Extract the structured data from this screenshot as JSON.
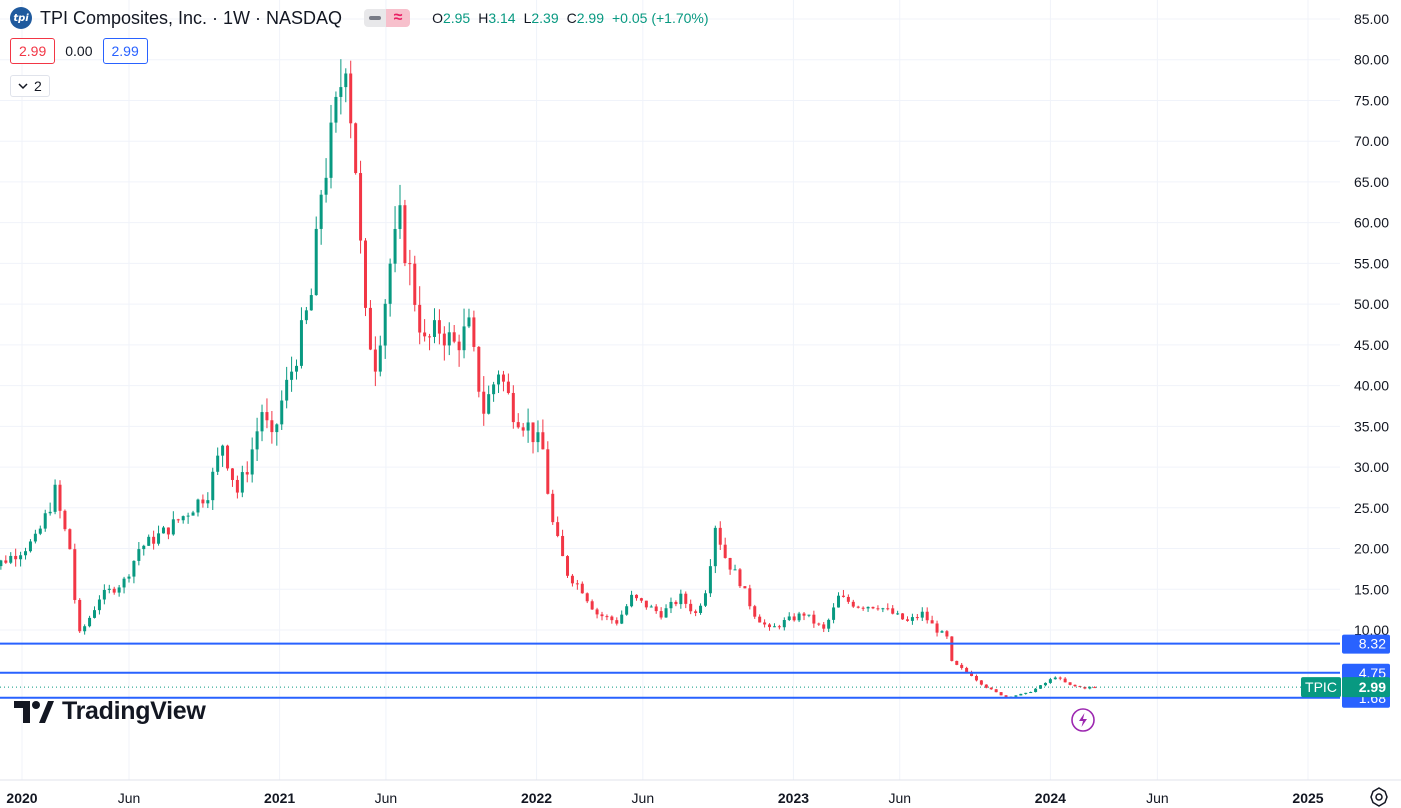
{
  "header": {
    "logo_text": "tpi",
    "title": "TPI Composites, Inc. · 1W · NASDAQ",
    "ohlc": [
      {
        "k": "O",
        "v": "2.95"
      },
      {
        "k": "H",
        "v": "3.14"
      },
      {
        "k": "L",
        "v": "2.39"
      },
      {
        "k": "C",
        "v": "2.99"
      }
    ],
    "change": "+0.05 (+1.70%)",
    "sell_price": "2.99",
    "spread": "0.00",
    "buy_price": "2.99",
    "indicators_count": "2",
    "collapse_icon": "chevron-down-icon"
  },
  "branding": {
    "name": "TradingView"
  },
  "colors": {
    "up": "#089981",
    "down": "#f23645",
    "hline": "#2962ff",
    "price_label_bg": "#089981",
    "hline_label_bg": "#2962ff",
    "grid": "#f0f3fa"
  },
  "chart_data": {
    "type": "candlestick",
    "symbol": "TPIC",
    "interval": "1W",
    "last_price": 2.99,
    "last_price_label": "2.99",
    "y_ticks": [
      "10.00",
      "15.00",
      "20.00",
      "25.00",
      "30.00",
      "35.00",
      "40.00",
      "45.00",
      "50.00",
      "55.00",
      "60.00",
      "65.00",
      "70.00",
      "75.00",
      "80.00",
      "85.00"
    ],
    "x_labels": [
      "2020",
      "Jun",
      "2021",
      "Jun",
      "2022",
      "Jun",
      "2023",
      "Jun",
      "2024",
      "Jun",
      "2025"
    ],
    "x_labels_bold": [
      "2020",
      "2021",
      "2022",
      "2023",
      "2024",
      "2025"
    ],
    "horizontal_lines": [
      {
        "value": 8.32,
        "label": "8.32"
      },
      {
        "value": 4.75,
        "label": "4.75"
      },
      {
        "value": 1.68,
        "label": "1.68"
      }
    ],
    "anchors": [
      [
        "2019-11-04",
        17
      ],
      [
        "2019-12-16",
        19
      ],
      [
        "2020-01-20",
        21
      ],
      [
        "2020-02-17",
        27
      ],
      [
        "2020-03-09",
        20
      ],
      [
        "2020-03-23",
        9.5
      ],
      [
        "2020-04-20",
        14
      ],
      [
        "2020-05-25",
        16
      ],
      [
        "2020-06-15",
        20
      ],
      [
        "2020-07-20",
        22
      ],
      [
        "2020-08-17",
        24
      ],
      [
        "2020-09-21",
        27
      ],
      [
        "2020-10-12",
        33
      ],
      [
        "2020-11-02",
        27
      ],
      [
        "2020-11-16",
        30
      ],
      [
        "2020-12-07",
        37
      ],
      [
        "2020-12-21",
        33
      ],
      [
        "2021-01-04",
        38
      ],
      [
        "2021-01-25",
        44
      ],
      [
        "2021-02-15",
        51
      ],
      [
        "2021-03-01",
        64
      ],
      [
        "2021-03-15",
        70
      ],
      [
        "2021-04-05",
        81
      ],
      [
        "2021-04-19",
        67
      ],
      [
        "2021-05-03",
        48
      ],
      [
        "2021-05-17",
        43
      ],
      [
        "2021-06-07",
        55
      ],
      [
        "2021-06-21",
        60
      ],
      [
        "2021-07-05",
        54
      ],
      [
        "2021-07-26",
        45
      ],
      [
        "2021-08-16",
        47
      ],
      [
        "2021-09-06",
        45
      ],
      [
        "2021-09-27",
        47
      ],
      [
        "2021-10-18",
        37
      ],
      [
        "2021-11-08",
        42
      ],
      [
        "2021-11-29",
        37
      ],
      [
        "2021-12-20",
        35
      ],
      [
        "2022-01-10",
        32
      ],
      [
        "2022-01-24",
        23
      ],
      [
        "2022-02-14",
        17
      ],
      [
        "2022-03-07",
        15
      ],
      [
        "2022-03-28",
        12
      ],
      [
        "2022-04-25",
        11
      ],
      [
        "2022-05-16",
        14
      ],
      [
        "2022-06-06",
        13
      ],
      [
        "2022-06-27",
        12
      ],
      [
        "2022-07-25",
        14
      ],
      [
        "2022-08-15",
        12
      ],
      [
        "2022-08-29",
        15
      ],
      [
        "2022-09-12",
        23
      ],
      [
        "2022-09-26",
        19
      ],
      [
        "2022-10-17",
        16
      ],
      [
        "2022-11-07",
        12
      ],
      [
        "2022-11-28",
        10
      ],
      [
        "2022-12-19",
        11
      ],
      [
        "2023-01-16",
        12
      ],
      [
        "2023-02-13",
        10
      ],
      [
        "2023-03-06",
        14
      ],
      [
        "2023-04-03",
        13
      ],
      [
        "2023-05-01",
        13
      ],
      [
        "2023-05-22",
        12
      ],
      [
        "2023-06-12",
        11
      ],
      [
        "2023-07-03",
        12
      ],
      [
        "2023-07-24",
        10
      ],
      [
        "2023-08-07",
        9
      ],
      [
        "2023-08-14",
        6
      ],
      [
        "2023-09-11",
        4.5
      ],
      [
        "2023-10-02",
        3
      ],
      [
        "2023-10-30",
        1.8
      ],
      [
        "2023-11-27",
        2.2
      ],
      [
        "2023-12-25",
        3.5
      ],
      [
        "2024-01-08",
        4.3
      ],
      [
        "2024-01-29",
        3.2
      ],
      [
        "2024-02-19",
        2.9
      ],
      [
        "2024-03-04",
        2.99
      ]
    ]
  }
}
